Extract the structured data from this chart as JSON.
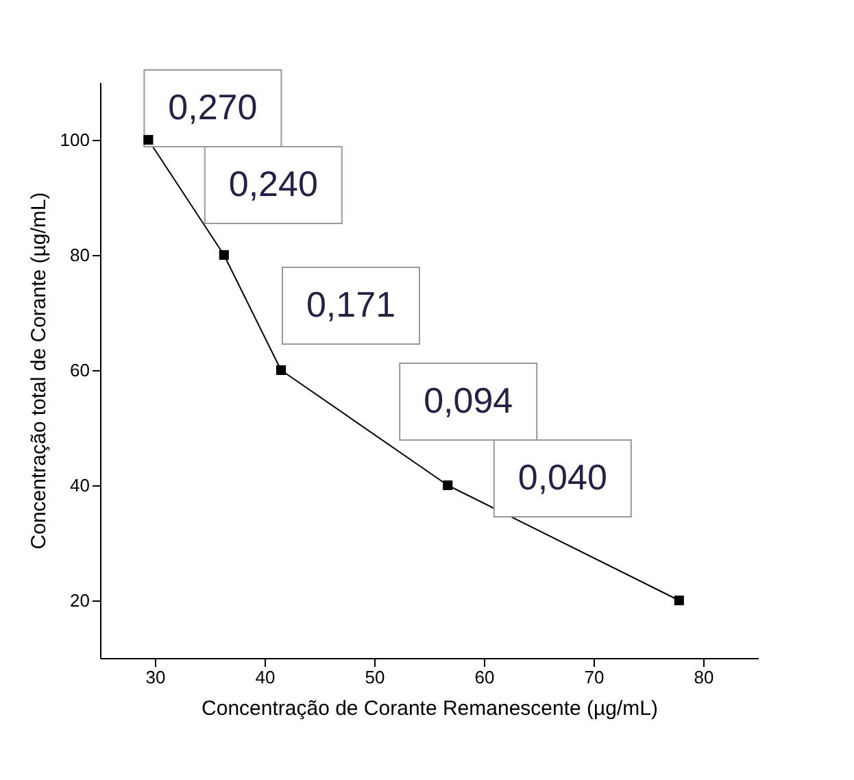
{
  "chart_data": {
    "type": "line",
    "xlabel": "Concentração de Corante Remanescente (µg/mL)",
    "ylabel": "Concentração total de Corante (µg/mL)",
    "x": [
      29.4,
      36.3,
      41.5,
      56.7,
      77.8
    ],
    "series": [
      {
        "color": "#000000",
        "values": [
          100,
          80,
          60,
          40,
          20
        ]
      }
    ],
    "marker": "square",
    "line_style": "solid",
    "grid": false,
    "xlim": [
      25,
      85
    ],
    "xticks": [
      30,
      40,
      50,
      60,
      70,
      80
    ],
    "ylim": [
      10,
      110
    ],
    "yticks": [
      20,
      40,
      60,
      80,
      100
    ],
    "annotations": [
      "0,270",
      "0,240",
      "0,171",
      "0,094",
      "0,040"
    ]
  }
}
